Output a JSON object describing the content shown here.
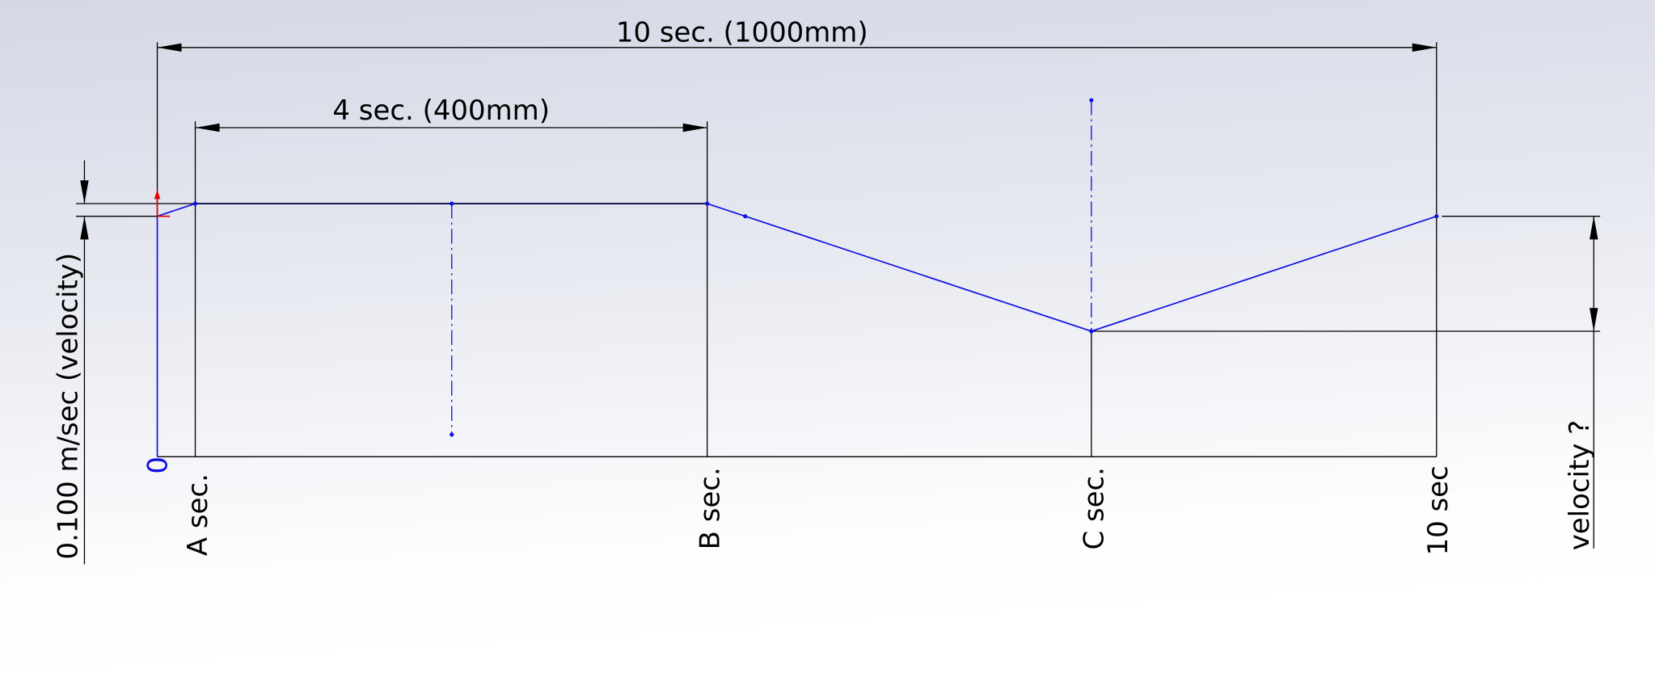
{
  "dimensions": {
    "total": "10 sec. (1000mm)",
    "segment": "4 sec. (400mm)",
    "velocity_start": "0.100 m/sec (velocity)",
    "velocity_unknown": "velocity ?"
  },
  "labels": {
    "origin": "0",
    "a": "A  sec.",
    "b": "B sec.",
    "c": "C sec.",
    "end": "10 sec"
  }
}
